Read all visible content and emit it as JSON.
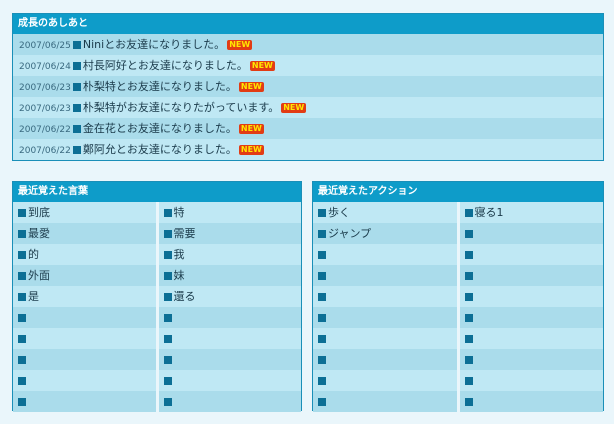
{
  "log": {
    "title": "成長のあしあと",
    "new_badge": "NEW",
    "entries": [
      {
        "date": "2007/06/25",
        "text": "Niniとお友達になりました。"
      },
      {
        "date": "2007/06/24",
        "text": "村長阿好とお友達になりました。"
      },
      {
        "date": "2007/06/23",
        "text": "朴梨特とお友達になりました。"
      },
      {
        "date": "2007/06/23",
        "text": "朴梨特がお友達になりたがっています。"
      },
      {
        "date": "2007/06/22",
        "text": "金在花とお友達になりました。"
      },
      {
        "date": "2007/06/22",
        "text": "鄭阿允とお友達になりました。"
      }
    ]
  },
  "words": {
    "title": "最近覚えた言葉",
    "rows": [
      [
        "到底",
        "特"
      ],
      [
        "最愛",
        "需要"
      ],
      [
        "的",
        "我"
      ],
      [
        "外面",
        "妹"
      ],
      [
        "是",
        "還る"
      ],
      [
        "",
        ""
      ],
      [
        "",
        ""
      ],
      [
        "",
        ""
      ],
      [
        "",
        ""
      ],
      [
        "",
        ""
      ]
    ]
  },
  "actions": {
    "title": "最近覚えたアクション",
    "rows": [
      [
        "歩く",
        "寝る1"
      ],
      [
        "ジャンプ",
        ""
      ],
      [
        "",
        ""
      ],
      [
        "",
        ""
      ],
      [
        "",
        ""
      ],
      [
        "",
        ""
      ],
      [
        "",
        ""
      ],
      [
        "",
        ""
      ],
      [
        "",
        ""
      ],
      [
        "",
        ""
      ]
    ]
  },
  "colors": {
    "header_bg": "#0e9cc9",
    "row_light": "#bfe8f4",
    "row_dark": "#aadceb",
    "bullet": "#0c6f95",
    "badge_bg": "#e23c14",
    "badge_text": "#ffe600"
  }
}
